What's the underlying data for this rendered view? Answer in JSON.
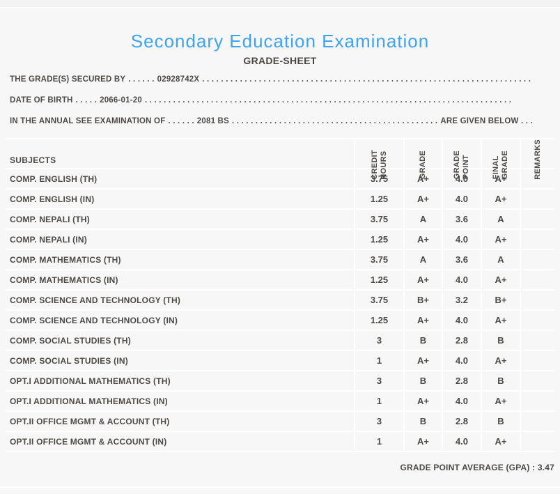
{
  "colors": {
    "accent_blue": "#3fa3ef",
    "text": "#4d4945",
    "background": "#f7f7f7",
    "separator": "#ffffff"
  },
  "header": {
    "title": "Secondary Education Examination",
    "subtitle": "GRADE-SHEET"
  },
  "info_lines": {
    "line1": {
      "label": "THE GRADE(S) SECURED BY",
      "dots_before": ". . . . . .",
      "value": "02928742X",
      "dots_after": ". . . . . . . . . . . . . . . . . . . . . . . . . . . . . . . . . . . . . . . . . . . . . . . . . . . . . . . . . . . . . . . . . . . . . ."
    },
    "line2": {
      "label": "DATE OF BIRTH",
      "dots_before": ". . . . .",
      "value": "2066-01-20",
      "dots_after": ". . . . . . . . . . . . . . . . . . . . . . . . . . . . . . . . . . . . . . . . . . . . . . . . . . . . . . . . . . . . . . . . . . . . . . . . . . . . . ."
    },
    "line3": {
      "label": "IN THE ANNUAL SEE EXAMINATION OF",
      "dots_before": ". . . . . .",
      "value": "2081 BS",
      "dots_after": ". . . . . . . . . . . . . . . . . . . . . . . . . . . . . . . . . . . . . . . . . . . .",
      "suffix": "ARE GIVEN BELOW . . ."
    }
  },
  "table": {
    "subjects_header": "SUBJECTS",
    "columns": [
      "CREDIT\nHOURS",
      "GRADE",
      "GRADE\nPOINT",
      "FINAL\nGRADE",
      "REMARKS"
    ],
    "rows": [
      {
        "subject": "COMP. ENGLISH (TH)",
        "credit_hours": "3.75",
        "grade": "A+",
        "grade_point": "4.0",
        "final_grade": "A+",
        "remarks": ""
      },
      {
        "subject": "COMP. ENGLISH (IN)",
        "credit_hours": "1.25",
        "grade": "A+",
        "grade_point": "4.0",
        "final_grade": "A+",
        "remarks": ""
      },
      {
        "subject": "COMP. NEPALI (TH)",
        "credit_hours": "3.75",
        "grade": "A",
        "grade_point": "3.6",
        "final_grade": "A",
        "remarks": ""
      },
      {
        "subject": "COMP. NEPALI (IN)",
        "credit_hours": "1.25",
        "grade": "A+",
        "grade_point": "4.0",
        "final_grade": "A+",
        "remarks": ""
      },
      {
        "subject": "COMP. MATHEMATICS (TH)",
        "credit_hours": "3.75",
        "grade": "A",
        "grade_point": "3.6",
        "final_grade": "A",
        "remarks": ""
      },
      {
        "subject": "COMP. MATHEMATICS (IN)",
        "credit_hours": "1.25",
        "grade": "A+",
        "grade_point": "4.0",
        "final_grade": "A+",
        "remarks": ""
      },
      {
        "subject": "COMP. SCIENCE AND TECHNOLOGY (TH)",
        "credit_hours": "3.75",
        "grade": "B+",
        "grade_point": "3.2",
        "final_grade": "B+",
        "remarks": ""
      },
      {
        "subject": "COMP. SCIENCE AND TECHNOLOGY (IN)",
        "credit_hours": "1.25",
        "grade": "A+",
        "grade_point": "4.0",
        "final_grade": "A+",
        "remarks": ""
      },
      {
        "subject": "COMP. SOCIAL STUDIES (TH)",
        "credit_hours": "3",
        "grade": "B",
        "grade_point": "2.8",
        "final_grade": "B",
        "remarks": ""
      },
      {
        "subject": "COMP. SOCIAL STUDIES (IN)",
        "credit_hours": "1",
        "grade": "A+",
        "grade_point": "4.0",
        "final_grade": "A+",
        "remarks": ""
      },
      {
        "subject": "OPT.I ADDITIONAL MATHEMATICS (TH)",
        "credit_hours": "3",
        "grade": "B",
        "grade_point": "2.8",
        "final_grade": "B",
        "remarks": ""
      },
      {
        "subject": "OPT.I ADDITIONAL MATHEMATICS (IN)",
        "credit_hours": "1",
        "grade": "A+",
        "grade_point": "4.0",
        "final_grade": "A+",
        "remarks": ""
      },
      {
        "subject": "OPT.II OFFICE MGMT & ACCOUNT (TH)",
        "credit_hours": "3",
        "grade": "B",
        "grade_point": "2.8",
        "final_grade": "B",
        "remarks": ""
      },
      {
        "subject": "OPT.II OFFICE MGMT & ACCOUNT (IN)",
        "credit_hours": "1",
        "grade": "A+",
        "grade_point": "4.0",
        "final_grade": "A+",
        "remarks": ""
      }
    ]
  },
  "footer": {
    "gpa_text": "GRADE POINT AVERAGE (GPA) : 3.47"
  }
}
